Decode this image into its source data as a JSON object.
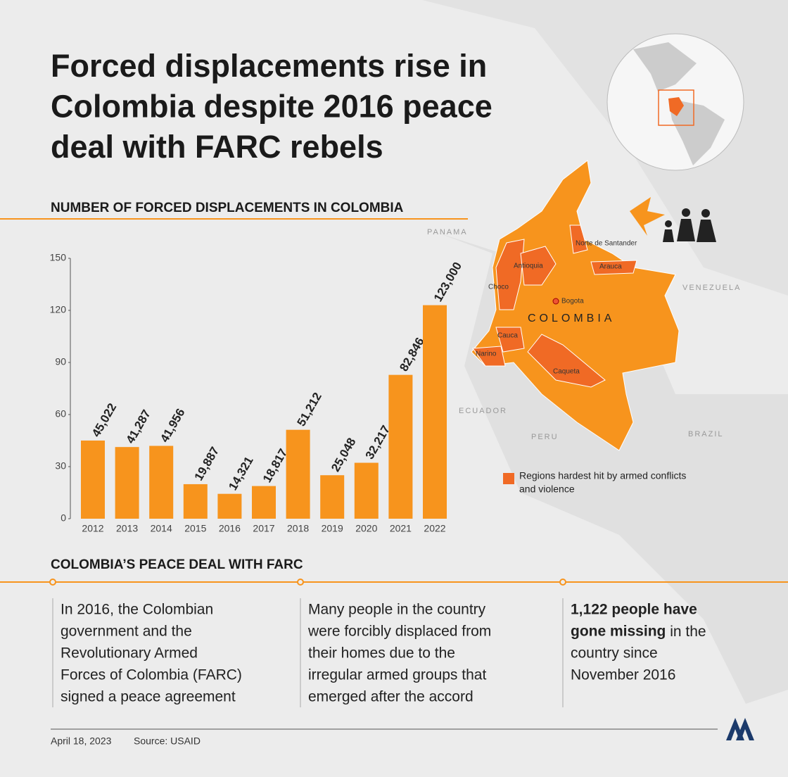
{
  "headline": [
    "Forced displacements rise in",
    "Colombia despite 2016 peace",
    "deal with FARC rebels"
  ],
  "chart_data": {
    "type": "bar",
    "title": "NUMBER OF FORCED DISPLACEMENTS IN COLOMBIA",
    "categories": [
      "2012",
      "2013",
      "2014",
      "2015",
      "2016",
      "2017",
      "2018",
      "2019",
      "2020",
      "2021",
      "2022"
    ],
    "values": [
      45.022,
      41.287,
      41.956,
      19.887,
      14.321,
      18.817,
      51.212,
      25.048,
      32.217,
      82.846,
      123
    ],
    "value_labels": [
      "45,022",
      "41,287",
      "41,956",
      "19,887",
      "14,321",
      "18,817",
      "51,212",
      "25,048",
      "32,217",
      "82,846",
      "123,000"
    ],
    "color": "#f7941d",
    "ylim": [
      0,
      150
    ],
    "yticks": [
      0,
      30,
      60,
      90,
      120,
      150
    ]
  },
  "map": {
    "country": "COLOMBIA",
    "capital": "Bogota",
    "regions": [
      "Norte de Santander",
      "Antioquia",
      "Arauca",
      "Choco",
      "Cauca",
      "Narino",
      "Caqueta"
    ],
    "neighbors": [
      "PANAMA",
      "VENEZUELA",
      "ECUADOR",
      "PERU",
      "BRAZIL"
    ],
    "legend": [
      "Regions hardest hit by armed conflicts",
      "and violence"
    ]
  },
  "peace_deal": {
    "title": "COLOMBIA’S PEACE DEAL WITH FARC",
    "columns": [
      {
        "bold": [],
        "lines": [
          "In 2016, the Colombian",
          "government and the",
          "Revolutionary Armed",
          "Forces of Colombia (FARC)",
          "signed a peace agreement"
        ]
      },
      {
        "bold": [],
        "lines": [
          "Many people in the country",
          "were forcibly displaced from",
          "their homes due to the",
          "irregular armed groups that",
          "emerged after the accord"
        ]
      },
      {
        "bold": [
          "1,122 people have",
          "gone missing"
        ],
        "lines": [
          " in the",
          "country since",
          "November 2016"
        ]
      }
    ]
  },
  "footer": {
    "date": "April 18, 2023",
    "source": "Source: USAID"
  }
}
